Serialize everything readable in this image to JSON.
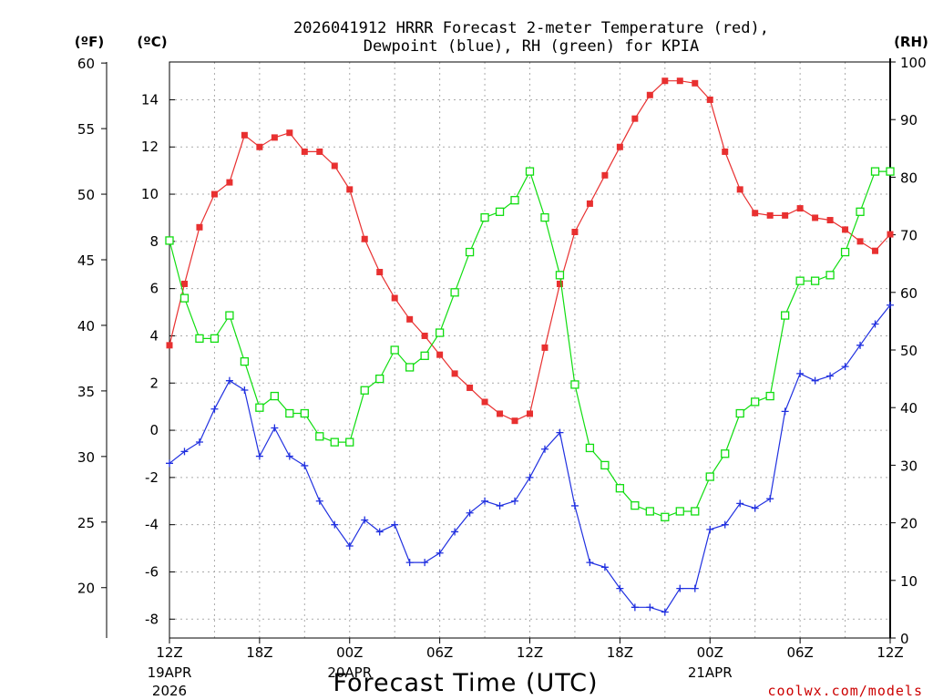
{
  "chart_data": {
    "type": "line",
    "title_line1": "2026041912 HRRR Forecast 2-meter Temperature (red),",
    "title_line2": "Dewpoint (blue), RH (green) for KPIA",
    "xlabel": "Forecast Time (UTC)",
    "credit": "coolwx.com/models",
    "units": {
      "fahrenheit": "(ºF)",
      "celsius": "(ºC)",
      "rh": "(RH)"
    },
    "x_hours": [
      0,
      1,
      2,
      3,
      4,
      5,
      6,
      7,
      8,
      9,
      10,
      11,
      12,
      13,
      14,
      15,
      16,
      17,
      18,
      19,
      20,
      21,
      22,
      23,
      24,
      25,
      26,
      27,
      28,
      29,
      30,
      31,
      32,
      33,
      34,
      35,
      36,
      37,
      38,
      39,
      40,
      41,
      42,
      43,
      44,
      45,
      46,
      47,
      48
    ],
    "xlim": [
      0,
      48
    ],
    "x_ticks": [
      {
        "hour": 0,
        "label": "12Z",
        "sub1": "19APR",
        "sub2": "2026"
      },
      {
        "hour": 6,
        "label": "18Z",
        "sub1": "",
        "sub2": ""
      },
      {
        "hour": 12,
        "label": "00Z",
        "sub1": "20APR",
        "sub2": ""
      },
      {
        "hour": 18,
        "label": "06Z",
        "sub1": "",
        "sub2": ""
      },
      {
        "hour": 24,
        "label": "12Z",
        "sub1": "",
        "sub2": ""
      },
      {
        "hour": 30,
        "label": "18Z",
        "sub1": "",
        "sub2": ""
      },
      {
        "hour": 36,
        "label": "00Z",
        "sub1": "21APR",
        "sub2": ""
      },
      {
        "hour": 42,
        "label": "06Z",
        "sub1": "",
        "sub2": ""
      },
      {
        "hour": 48,
        "label": "12Z",
        "sub1": "",
        "sub2": ""
      }
    ],
    "ylim_c": [
      -8.8,
      15.6
    ],
    "ylim_rh": [
      0,
      100
    ],
    "ylim_f": [
      16.16,
      60.08
    ],
    "y_ticks_c": [
      "-8",
      "-6",
      "-4",
      "-2",
      "0",
      "2",
      "4",
      "6",
      "8",
      "10",
      "12",
      "14"
    ],
    "y_ticks_f": [
      "20",
      "25",
      "30",
      "35",
      "40",
      "45",
      "50",
      "55",
      "60"
    ],
    "y_ticks_rh": [
      "0",
      "10",
      "20",
      "30",
      "40",
      "50",
      "60",
      "70",
      "80",
      "90",
      "100"
    ],
    "series": [
      {
        "name": "Temperature",
        "unit": "C",
        "color": "#e83030",
        "marker": "filled-square",
        "values": [
          3.6,
          6.2,
          8.6,
          10.0,
          10.5,
          12.5,
          12.0,
          12.4,
          12.6,
          11.8,
          11.8,
          11.2,
          10.2,
          8.1,
          6.7,
          5.6,
          4.7,
          4.0,
          3.2,
          2.4,
          1.8,
          1.2,
          0.7,
          0.4,
          0.7,
          3.5,
          6.2,
          8.4,
          9.6,
          10.8,
          12.0,
          13.2,
          14.2,
          14.8,
          14.8,
          14.7,
          14.0,
          11.8,
          10.2,
          9.2,
          9.1,
          9.1,
          9.4,
          9.0,
          8.9,
          8.5,
          8.0,
          7.6,
          8.3
        ]
      },
      {
        "name": "Dewpoint",
        "unit": "C",
        "color": "#2030e0",
        "marker": "plus",
        "values": [
          -1.4,
          -0.9,
          -0.5,
          0.9,
          2.1,
          1.7,
          -1.1,
          0.1,
          -1.1,
          -1.5,
          -3.0,
          -4.0,
          -4.9,
          -3.8,
          -4.3,
          -4.0,
          -5.6,
          -5.6,
          -5.2,
          -4.3,
          -3.5,
          -3.0,
          -3.2,
          -3.0,
          -2.0,
          -0.8,
          -0.1,
          -3.2,
          -5.6,
          -5.8,
          -6.7,
          -7.5,
          -7.5,
          -7.7,
          -6.7,
          -6.7,
          -4.2,
          -4.0,
          -3.1,
          -3.3,
          -2.9,
          0.8,
          2.4,
          2.1,
          2.3,
          2.7,
          3.6,
          4.5,
          5.3
        ]
      },
      {
        "name": "RH",
        "unit": "%",
        "color": "#10dd10",
        "marker": "open-square",
        "values": [
          69,
          59,
          52,
          52,
          56,
          48,
          40,
          42,
          39,
          39,
          35,
          34,
          34,
          43,
          45,
          50,
          47,
          49,
          53,
          60,
          67,
          73,
          74,
          76,
          81,
          73,
          63,
          44,
          33,
          30,
          26,
          23,
          22,
          21,
          22,
          22,
          28,
          32,
          39,
          41,
          42,
          56,
          62,
          62,
          63,
          67,
          74,
          81,
          81
        ]
      }
    ]
  }
}
